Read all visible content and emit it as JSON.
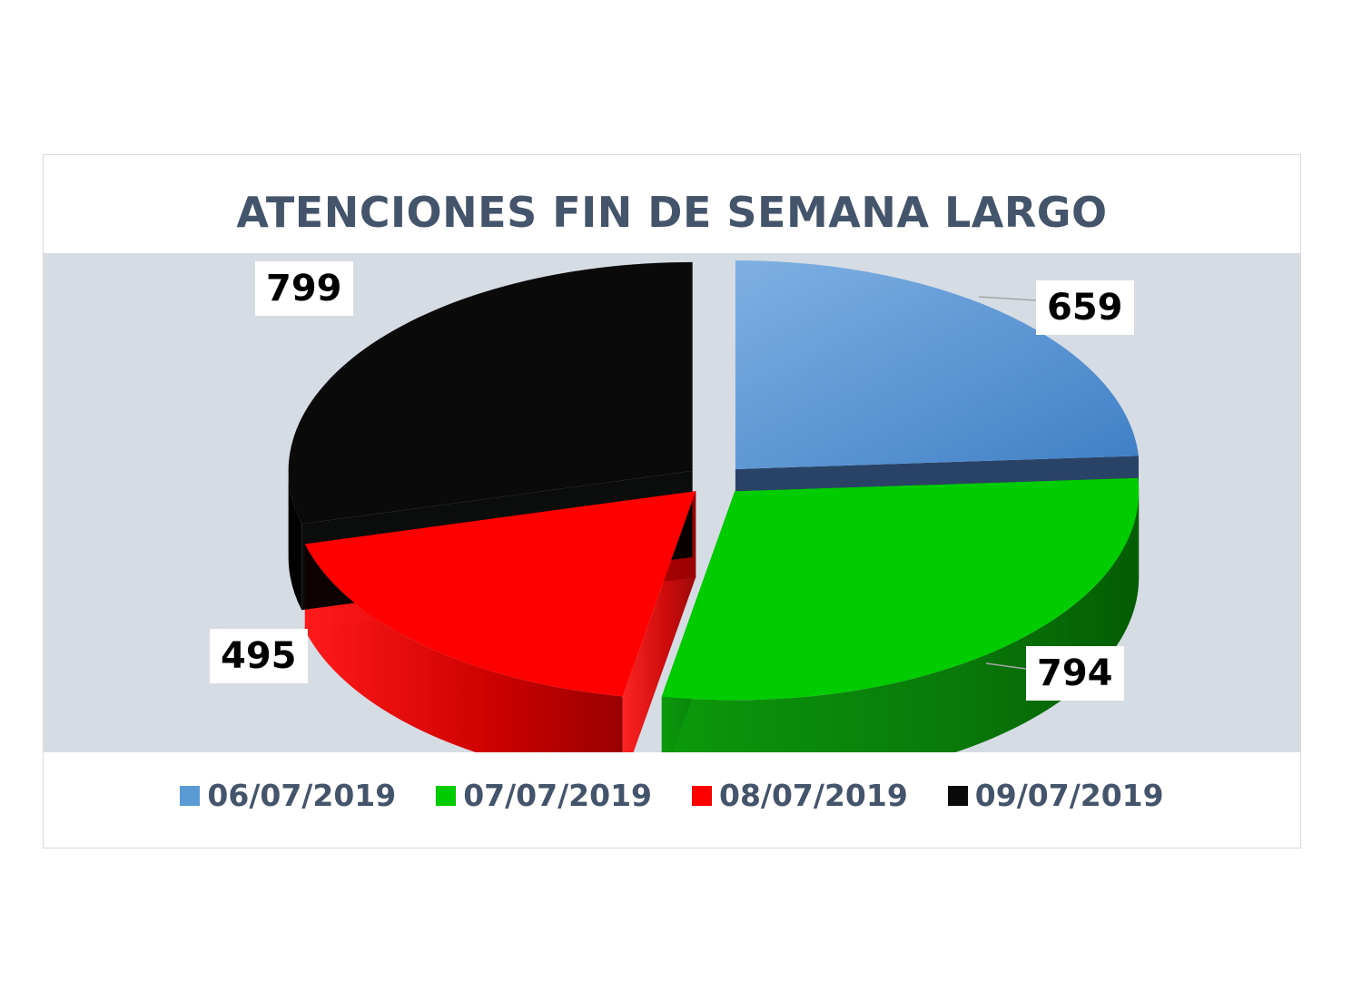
{
  "chart_data": {
    "type": "pie",
    "title": "ATENCIONES FIN DE SEMANA LARGO",
    "categories": [
      "06/07/2019",
      "07/07/2019",
      "08/07/2019",
      "09/07/2019"
    ],
    "values": [
      659,
      794,
      495,
      799
    ],
    "colors": {
      "06/07/2019": "#5b9bd5",
      "07/07/2019": "#00cc00",
      "08/07/2019": "#ff0000",
      "09/07/2019": "#0a0a0a"
    },
    "legend_position": "bottom",
    "exploded": true,
    "style": "3d-pie"
  }
}
